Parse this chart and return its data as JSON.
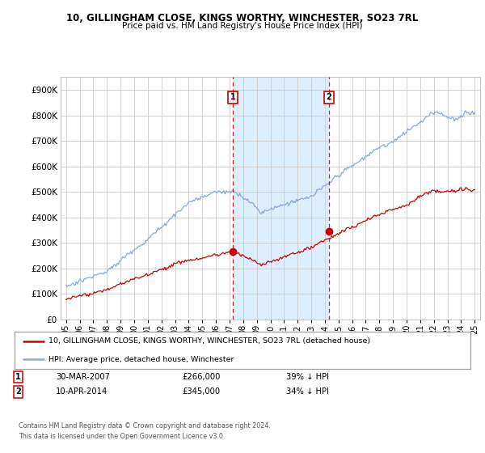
{
  "title": "10, GILLINGHAM CLOSE, KINGS WORTHY, WINCHESTER, SO23 7RL",
  "subtitle": "Price paid vs. HM Land Registry's House Price Index (HPI)",
  "legend_line1": "10, GILLINGHAM CLOSE, KINGS WORTHY, WINCHESTER, SO23 7RL (detached house)",
  "legend_line2": "HPI: Average price, detached house, Winchester",
  "annotation1_date": "30-MAR-2007",
  "annotation1_price": "£266,000",
  "annotation1_pct": "39% ↓ HPI",
  "annotation2_date": "10-APR-2014",
  "annotation2_price": "£345,000",
  "annotation2_pct": "34% ↓ HPI",
  "footnote": "Contains HM Land Registry data © Crown copyright and database right 2024.\nThis data is licensed under the Open Government Licence v3.0.",
  "property_color": "#cc0000",
  "hpi_color": "#88aadd",
  "marker1_x_year": 2007.25,
  "marker2_x_year": 2014.28,
  "marker1_y": 266000,
  "marker2_y": 345000,
  "ylim": [
    0,
    950000
  ],
  "xlim_start": 1994.6,
  "xlim_end": 2025.4,
  "yticks": [
    0,
    100000,
    200000,
    300000,
    400000,
    500000,
    600000,
    700000,
    800000,
    900000
  ],
  "xticks": [
    1995,
    1996,
    1997,
    1998,
    1999,
    2000,
    2001,
    2002,
    2003,
    2004,
    2005,
    2006,
    2007,
    2008,
    2009,
    2010,
    2011,
    2012,
    2013,
    2014,
    2015,
    2016,
    2017,
    2018,
    2019,
    2020,
    2021,
    2022,
    2023,
    2024,
    2025
  ],
  "background_color": "#ffffff",
  "grid_color": "#cccccc",
  "span_color": "#ddeeff"
}
